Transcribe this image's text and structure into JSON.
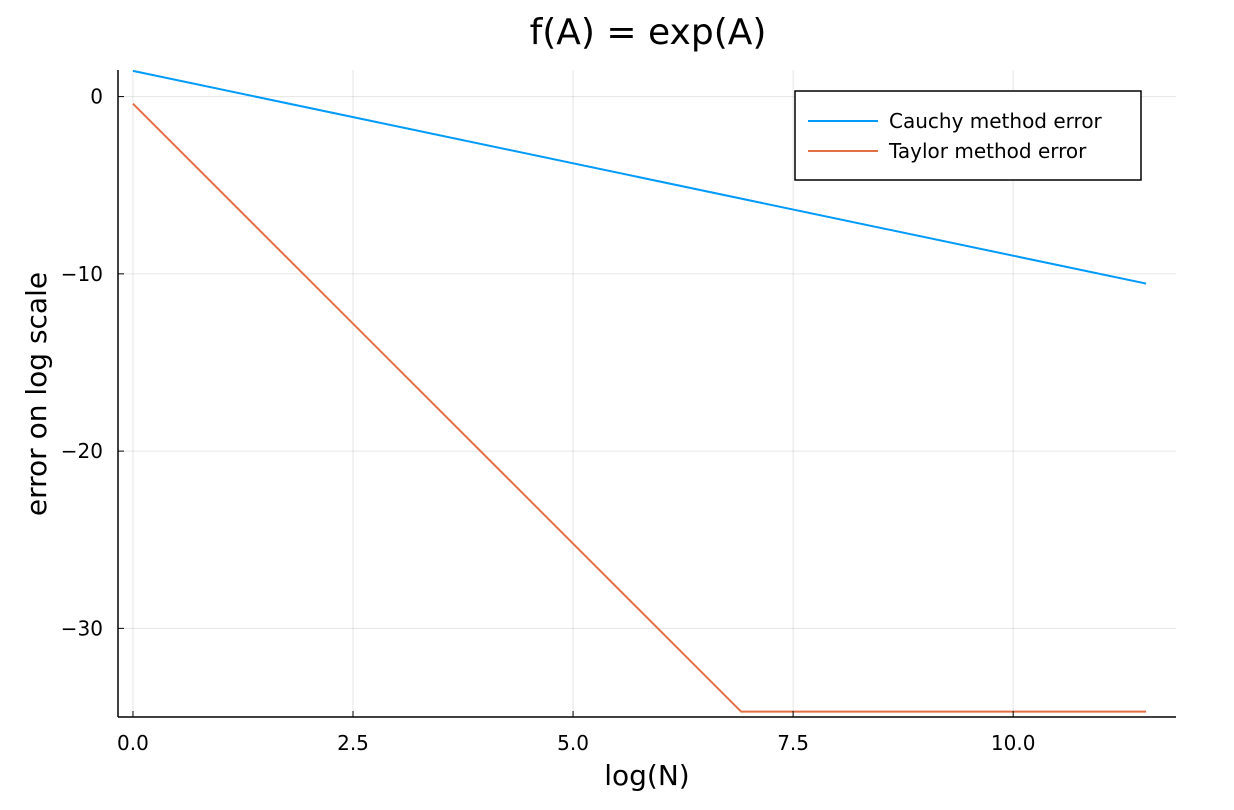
{
  "chart_data": {
    "type": "line",
    "title": "f(A) = exp(A)",
    "xlabel": "log(N)",
    "ylabel": "error on log scale",
    "xlim": [
      -0.17,
      11.85
    ],
    "ylim": [
      -35,
      1.5
    ],
    "xticks": [
      0.0,
      2.5,
      5.0,
      7.5,
      10.0
    ],
    "xtick_labels": [
      "0.0",
      "2.5",
      "5.0",
      "7.5",
      "10.0"
    ],
    "yticks": [
      0,
      -10,
      -20,
      -30
    ],
    "ytick_labels": [
      "0",
      "−10",
      "−20",
      "−30"
    ],
    "grid": true,
    "legend_position": "top-right",
    "series": [
      {
        "name": "Cauchy method error",
        "color": "#009af9",
        "points": [
          [
            0.0,
            1.45
          ],
          [
            11.51,
            -10.55
          ]
        ]
      },
      {
        "name": "Taylor method error",
        "color": "#e26f46",
        "points": [
          [
            0.0,
            -0.4
          ],
          [
            6.91,
            -34.7
          ],
          [
            11.51,
            -34.7
          ]
        ]
      }
    ]
  }
}
